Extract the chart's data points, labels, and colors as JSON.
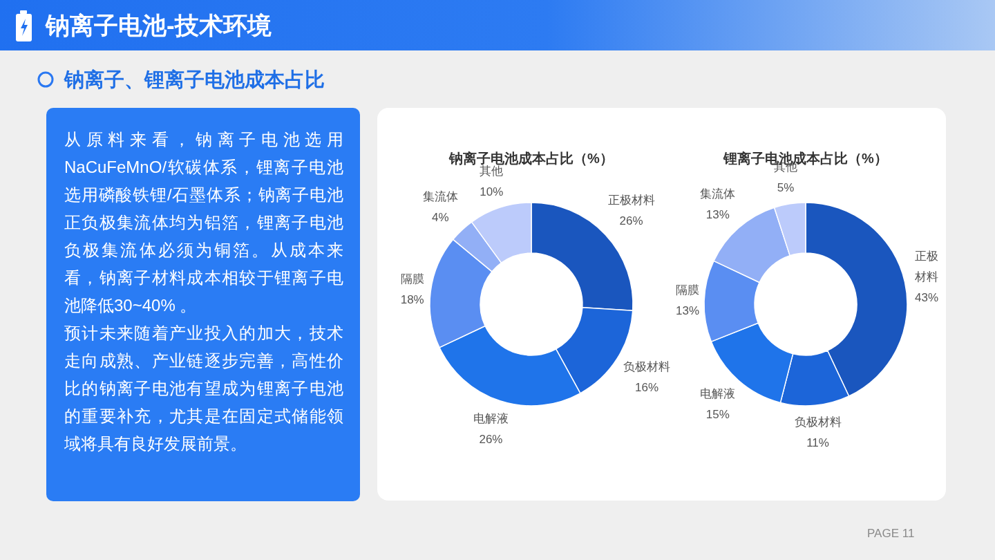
{
  "chart_data": [
    {
      "type": "other",
      "title": "钠离子电池-技术环境",
      "subtitle": "钠离子、锂离子电池成本占比",
      "annotations": [
        "从原料来看，钠离子电池选用NaCuFeMnO/软碳体系，锂离子电池选用磷酸铁锂/石墨体系；钠离子电池正负极集流体均为铝箔，锂离子电池负极集流体必须为铜箔。从成本来看，钠离子材料成本相较于锂离子电池降低30~40% 。",
        "预计未来随着产业投入的加大，技术走向成熟、产业链逐步完善，高性价比的钠离子电池有望成为锂离子电池的重要补充，尤其是在固定式储能领域将具有良好发展前景。",
        "PAGE 11"
      ]
    },
    {
      "type": "donut",
      "title": "钠离子电池成本占比（%）",
      "categories": [
        "正极材料",
        "负极材料",
        "电解液",
        "隔膜",
        "集流体",
        "其他"
      ],
      "values": [
        26,
        16,
        26,
        18,
        4,
        10
      ],
      "value_labels": [
        "26%",
        "16%",
        "26%",
        "18%",
        "4%",
        "10%"
      ],
      "colors": [
        "#1a56be",
        "#1c65d9",
        "#1f74ea",
        "#5a8ef2",
        "#92aff6",
        "#bccbfb"
      ]
    },
    {
      "type": "donut",
      "title": "锂离子电池成本占比（%）",
      "categories": [
        "正极材料",
        "负极材料",
        "电解液",
        "隔膜",
        "集流体",
        "其他"
      ],
      "values": [
        43,
        11,
        15,
        13,
        13,
        5
      ],
      "value_labels": [
        "43%",
        "11%",
        "15%",
        "13%",
        "13%",
        "5%"
      ],
      "colors": [
        "#1a56be",
        "#1c65d9",
        "#1f74ea",
        "#5a8ef2",
        "#92aff6",
        "#bccbfb"
      ]
    }
  ]
}
